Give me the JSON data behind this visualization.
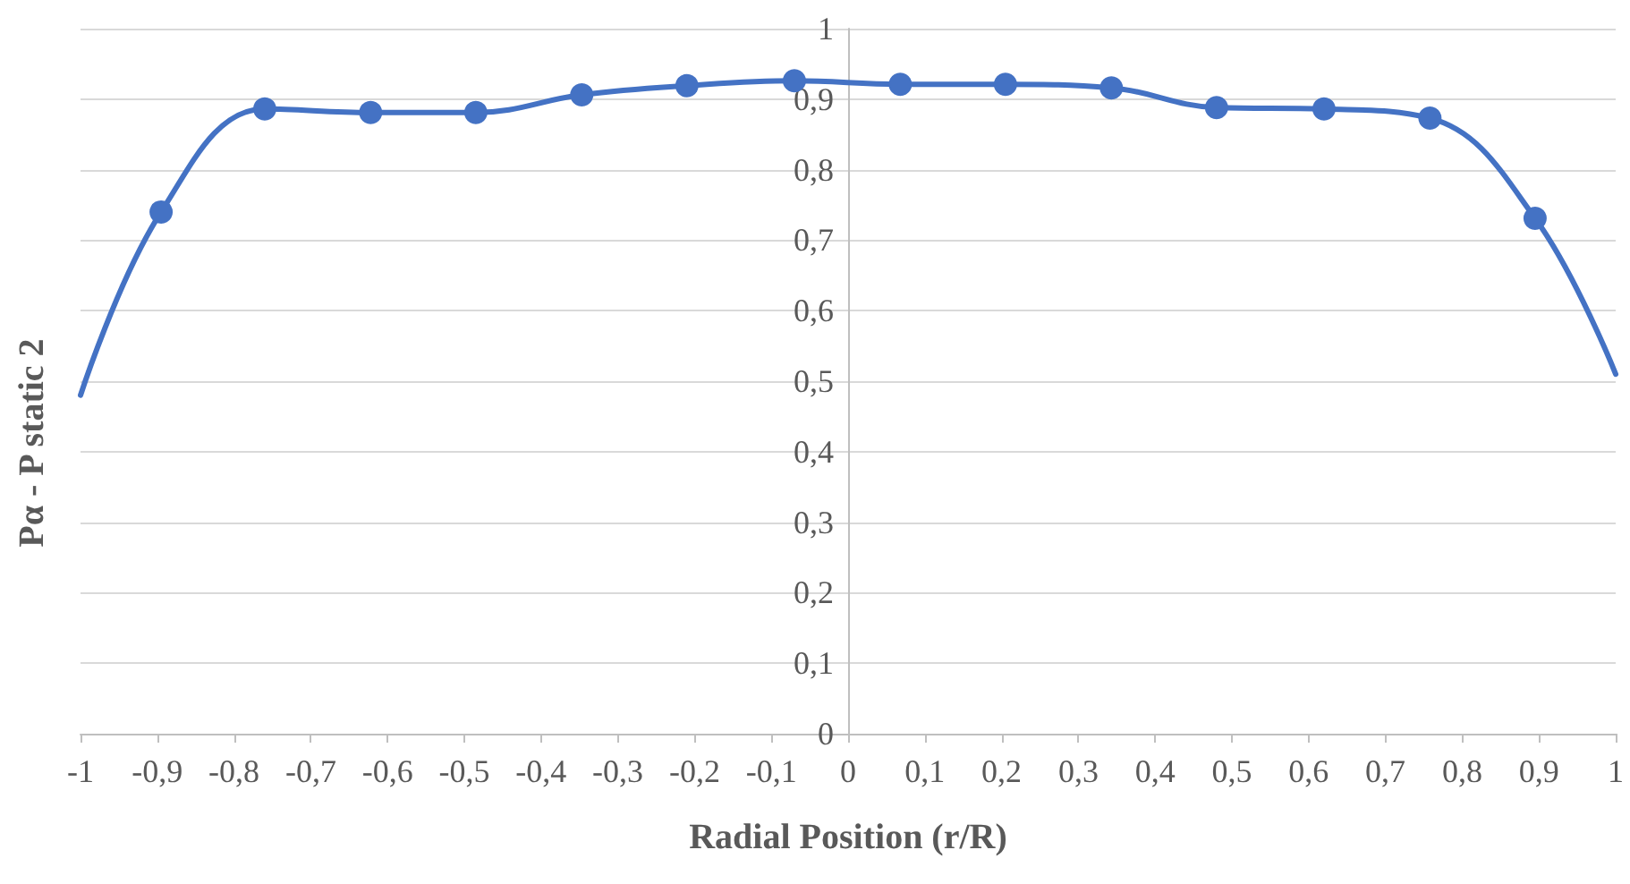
{
  "chart_data": {
    "type": "line",
    "xlabel": "Radial Position (r/R)",
    "ylabel": "Pα - P static 2",
    "x": [
      -1,
      -0.895,
      -0.76,
      -0.622,
      -0.485,
      -0.347,
      -0.21,
      -0.07,
      0.068,
      0.205,
      0.343,
      0.48,
      0.62,
      0.758,
      0.895,
      1
    ],
    "series": [
      {
        "color": "#4472c4",
        "values": [
          0.48,
          0.74,
          0.886,
          0.881,
          0.881,
          0.906,
          0.919,
          0.926,
          0.921,
          0.921,
          0.916,
          0.888,
          0.886,
          0.873,
          0.731,
          0.51
        ]
      }
    ],
    "xlim": [
      -1,
      1
    ],
    "xticks": [
      -1,
      {
        "value": -0.9,
        "label": "-0,9"
      },
      {
        "value": -0.8,
        "label": "-0,8"
      },
      {
        "value": -0.7,
        "label": "-0,7"
      },
      {
        "value": -0.6,
        "label": "-0,6"
      },
      {
        "value": -0.5,
        "label": "-0,5"
      },
      {
        "value": -0.4,
        "label": "-0,4"
      },
      {
        "value": -0.3,
        "label": "-0,3"
      },
      {
        "value": -0.2,
        "label": "-0,2"
      },
      {
        "value": -0.1,
        "label": "-0,1"
      },
      0,
      {
        "value": 0.1,
        "label": "0,1"
      },
      {
        "value": 0.2,
        "label": "0,2"
      },
      {
        "value": 0.3,
        "label": "0,3"
      },
      {
        "value": 0.4,
        "label": "0,4"
      },
      {
        "value": 0.5,
        "label": "0,5"
      },
      {
        "value": 0.6,
        "label": "0,6"
      },
      {
        "value": 0.7,
        "label": "0,7"
      },
      {
        "value": 0.8,
        "label": "0,8"
      },
      {
        "value": 0.9,
        "label": "0,9"
      },
      1
    ],
    "ylim": [
      0,
      1
    ],
    "yticks": [
      0,
      {
        "value": 0.1,
        "label": "0,1"
      },
      {
        "value": 0.2,
        "label": "0,2"
      },
      {
        "value": 0.3,
        "label": "0,3"
      },
      {
        "value": 0.4,
        "label": "0,4"
      },
      {
        "value": 0.5,
        "label": "0,5"
      },
      {
        "value": 0.6,
        "label": "0,6"
      },
      {
        "value": 0.7,
        "label": "0,7"
      },
      {
        "value": 0.8,
        "label": "0,8"
      },
      {
        "value": 0.9,
        "label": "0,9"
      },
      1
    ],
    "grid": "y",
    "marker": "circle",
    "line_style": "solid"
  }
}
